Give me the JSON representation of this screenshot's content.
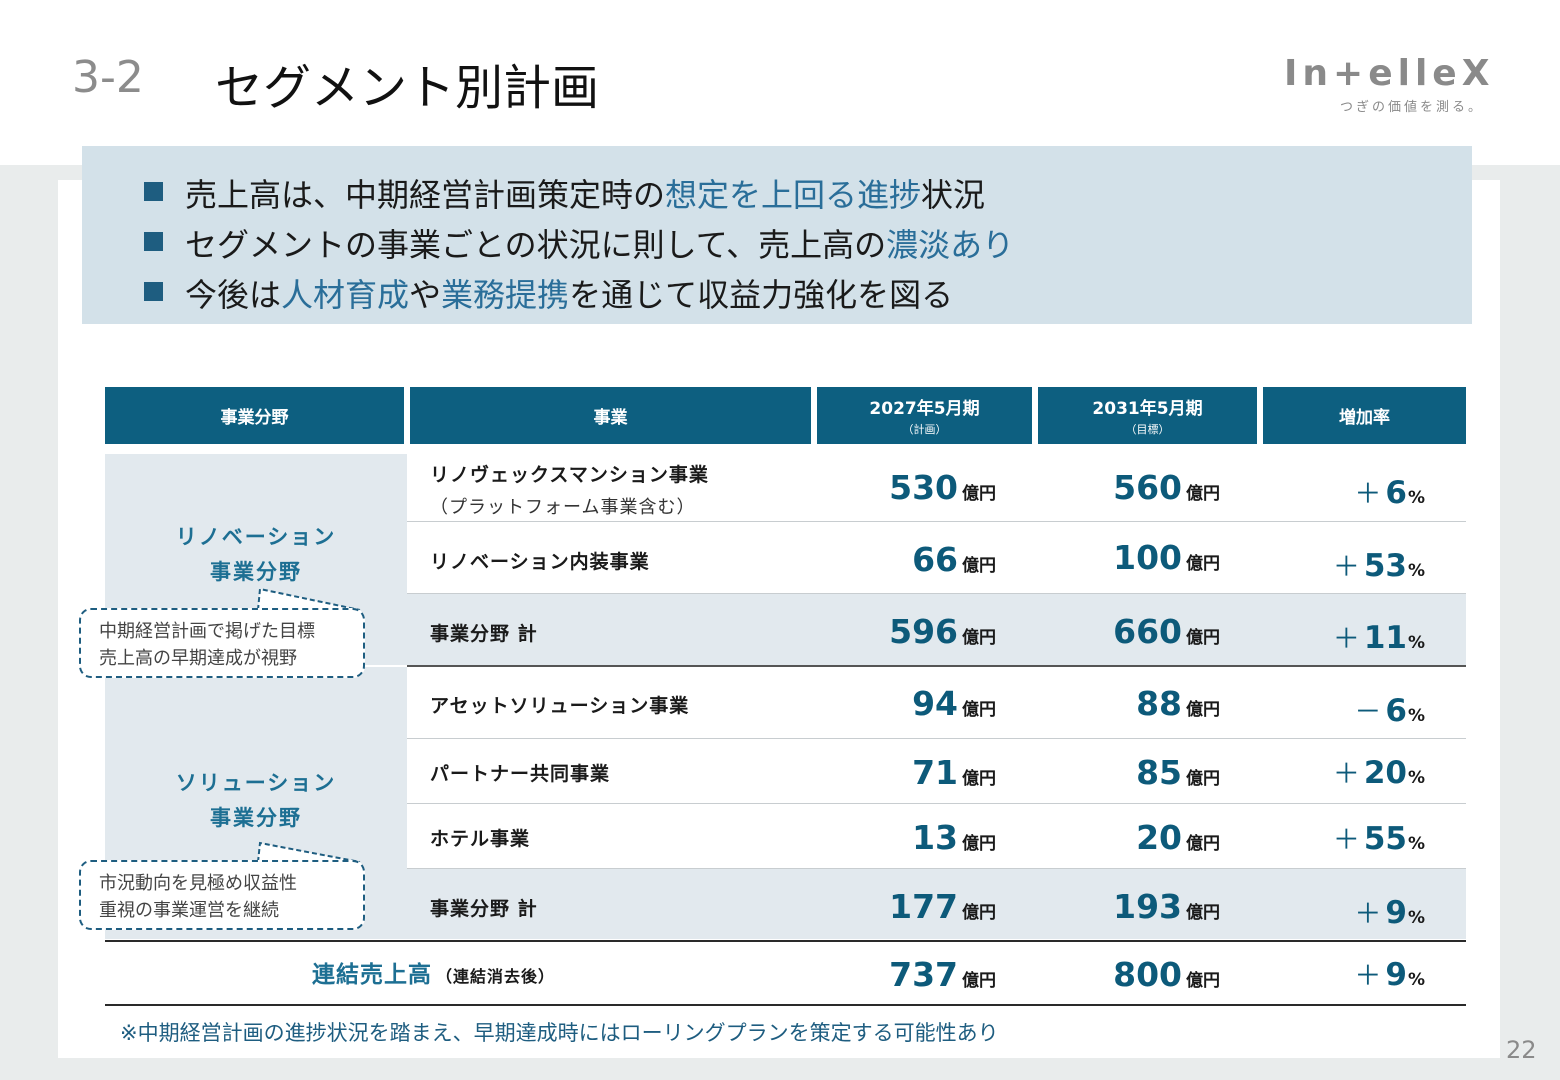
{
  "header": {
    "section_number": "3-2",
    "title": "セグメント別計画"
  },
  "logo": {
    "wordmark": "In+elleX",
    "tagline": "つぎの価値を測る。"
  },
  "summary": {
    "bullets": [
      {
        "before": "売上高は、中期経営計画策定時の",
        "highlight": "想定を上回る進捗",
        "after": "状況"
      },
      {
        "before": "セグメントの事業ごとの状況に則して、売上高の",
        "highlight": "濃淡あり",
        "after": ""
      },
      {
        "before": "今後は",
        "highlight": "人材育成",
        "middle": "や",
        "highlight2": "業務提携",
        "after": "を通じて収益力強化を図る"
      }
    ]
  },
  "table": {
    "headers": {
      "field": "事業分野",
      "business": "事業",
      "fy2027": "2027年5月期",
      "fy2027_sub": "（計画）",
      "fy2031": "2031年5月期",
      "fy2031_sub": "（目標）",
      "growth": "増加率"
    },
    "unit": "億円",
    "pct": "%",
    "segments": [
      {
        "label_line1": "リノベーション",
        "label_line2": "事業分野",
        "callout_line1": "中期経営計画で掲げた目標",
        "callout_line2": "売上高の早期達成が視野",
        "rows": [
          {
            "name": "リノヴェックスマンション事業",
            "note": "（プラットフォーム事業含む）",
            "v2027": "530",
            "v2031": "560",
            "sign": "＋",
            "rate": "6"
          },
          {
            "name": "リノベーション内装事業",
            "v2027": "66",
            "v2031": "100",
            "sign": "＋",
            "rate": "53"
          },
          {
            "name": "事業分野 計",
            "v2027": "596",
            "v2031": "660",
            "sign": "＋",
            "rate": "11"
          }
        ]
      },
      {
        "label_line1": "ソリューション",
        "label_line2": "事業分野",
        "callout_line1": "市況動向を見極め収益性",
        "callout_line2": "重視の事業運営を継続",
        "rows": [
          {
            "name": "アセットソリューション事業",
            "v2027": "94",
            "v2031": "88",
            "sign": "－",
            "rate": "6"
          },
          {
            "name": "パートナー共同事業",
            "v2027": "71",
            "v2031": "85",
            "sign": "＋",
            "rate": "20"
          },
          {
            "name": "ホテル事業",
            "v2027": "13",
            "v2031": "20",
            "sign": "＋",
            "rate": "55"
          },
          {
            "name": "事業分野 計",
            "v2027": "177",
            "v2031": "193",
            "sign": "＋",
            "rate": "9"
          }
        ]
      }
    ],
    "total": {
      "label": "連結売上高",
      "label_note": "（連結消去後）",
      "v2027": "737",
      "v2031": "800",
      "sign": "＋",
      "rate": "9"
    }
  },
  "footnote": "※中期経営計画の進捗状況を踏まえ、早期達成時にはローリングプランを策定する可能性あり",
  "page_number": "22"
}
